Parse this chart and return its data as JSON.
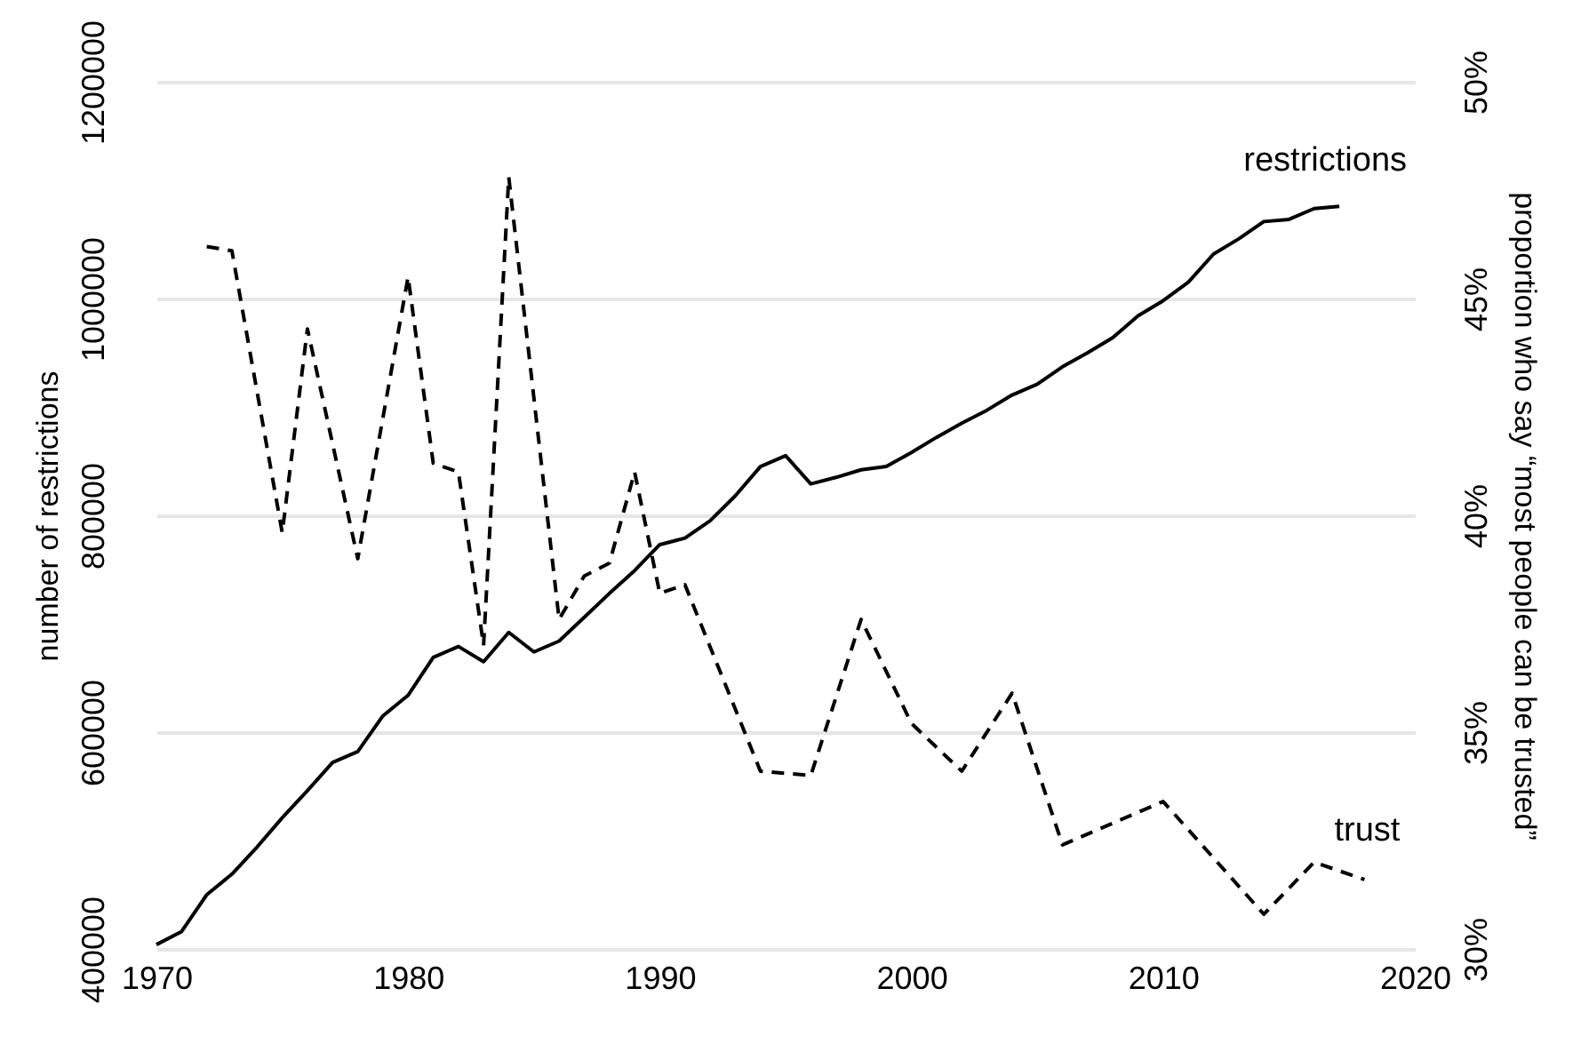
{
  "chart_data": {
    "type": "line",
    "ylabel": "number of restrictions",
    "y2label": "proportion who say “most people can be trusted”",
    "xlim": [
      1970,
      2020
    ],
    "xticks": [
      1970,
      1980,
      1990,
      2000,
      2010,
      2020
    ],
    "ylim": [
      400000,
      1200000
    ],
    "yticks": [
      400000,
      600000,
      800000,
      1000000,
      1200000
    ],
    "y2lim": [
      30,
      50
    ],
    "y2ticks": [
      {
        "value": 30,
        "label": "30%"
      },
      {
        "value": 35,
        "label": "35%"
      },
      {
        "value": 40,
        "label": "40%"
      },
      {
        "value": 45,
        "label": "45%"
      },
      {
        "value": 50,
        "label": "50%"
      }
    ],
    "grid": "y",
    "series": [
      {
        "name": "restrictions",
        "color": "#000000",
        "line_style": "solid",
        "x": [
          1970,
          1971,
          1972,
          1973,
          1974,
          1975,
          1976,
          1977,
          1978,
          1979,
          1980,
          1981,
          1982,
          1983,
          1984,
          1985,
          1986,
          1987,
          1988,
          1989,
          1990,
          1991,
          1992,
          1993,
          1994,
          1995,
          1996,
          1997,
          1998,
          1999,
          2000,
          2001,
          2002,
          2003,
          2004,
          2005,
          2006,
          2007,
          2008,
          2009,
          2010,
          2011,
          2012,
          2013,
          2014,
          2015,
          2016,
          2017
        ],
        "values": [
          404000,
          416000,
          450000,
          469000,
          494000,
          521000,
          546000,
          572000,
          582000,
          615000,
          634000,
          669000,
          679000,
          665000,
          692000,
          674000,
          684000,
          706000,
          728000,
          749000,
          773000,
          779000,
          795000,
          818000,
          845000,
          855000,
          829000,
          835000,
          842000,
          845000,
          858000,
          872000,
          885000,
          897000,
          911000,
          921000,
          937000,
          950000,
          964000,
          984000,
          998000,
          1015000,
          1041000,
          1055000,
          1071000,
          1073000,
          1083000,
          1085000
        ]
      },
      {
        "name": "trust",
        "color": "#000000",
        "line_style": "dashed",
        "axis": "y2",
        "x": [
          1972,
          1973,
          1975,
          1976,
          1978,
          1980,
          1981,
          1982,
          1983,
          1984,
          1986,
          1987,
          1988,
          1989,
          1990,
          1991,
          1994,
          1996,
          1998,
          2000,
          2002,
          2004,
          2006,
          2010,
          2014,
          2016,
          2018
        ],
        "values": [
          46.2,
          46.1,
          39.6,
          44.3,
          39.0,
          45.5,
          41.2,
          41.0,
          37.0,
          47.8,
          37.6,
          38.6,
          38.9,
          41.0,
          38.2,
          38.4,
          34.1,
          34.0,
          37.6,
          35.2,
          34.1,
          35.9,
          32.4,
          33.4,
          30.8,
          32.0,
          31.6
        ]
      }
    ]
  }
}
